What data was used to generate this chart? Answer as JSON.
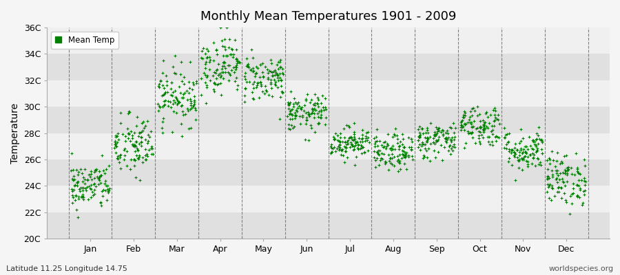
{
  "title": "Monthly Mean Temperatures 1901 - 2009",
  "ylabel": "Temperature",
  "subtitle_left": "Latitude 11.25 Longitude 14.75",
  "subtitle_right": "worldspecies.org",
  "dot_color": "#008000",
  "background_color": "#f5f5f5",
  "plot_bg_light": "#f0f0f0",
  "plot_bg_dark": "#e0e0e0",
  "ylim": [
    20,
    36
  ],
  "yticks": [
    20,
    22,
    24,
    26,
    28,
    30,
    32,
    34,
    36
  ],
  "ytick_labels": [
    "20C",
    "22C",
    "24C",
    "26C",
    "28C",
    "30C",
    "32C",
    "34C",
    "36C"
  ],
  "months": [
    "Jan",
    "Feb",
    "Mar",
    "Apr",
    "May",
    "Jun",
    "Jul",
    "Aug",
    "Sep",
    "Oct",
    "Nov",
    "Dec"
  ],
  "month_means": [
    24.0,
    27.0,
    30.8,
    33.2,
    32.2,
    29.5,
    27.3,
    26.5,
    27.5,
    28.6,
    26.7,
    24.5
  ],
  "month_stds": [
    0.9,
    1.2,
    1.1,
    1.1,
    0.9,
    0.7,
    0.6,
    0.7,
    0.7,
    0.8,
    0.8,
    1.0
  ],
  "n_years": 109,
  "legend_label": "Mean Temp",
  "marker_size": 8,
  "dpi": 100,
  "figsize": [
    9.0,
    4.0
  ],
  "x_start": 0.5,
  "x_month_width": 1.0,
  "xlim_left": 0.0,
  "xlim_right": 13.0
}
